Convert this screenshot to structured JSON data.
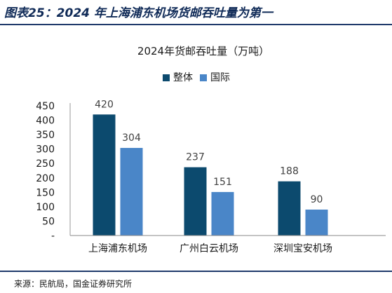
{
  "figure": {
    "title": "图表25：2024 年上海浦东机场货邮吞吐量为第一",
    "source": "来源：民航局，国金证券研究所"
  },
  "colors": {
    "series_total": "#0c4a6e",
    "series_intl": "#4a86c8",
    "rule": "#1f3a6b",
    "figure_title": "#0f2a57"
  },
  "chart_data": {
    "type": "bar",
    "title": "2024年货邮吞吐量（万吨）",
    "categories": [
      "上海浦东机场",
      "广州白云机场",
      "深圳宝安机场"
    ],
    "series": [
      {
        "name": "整体",
        "values": [
          420,
          237,
          188
        ]
      },
      {
        "name": "国际",
        "values": [
          304,
          151,
          90
        ]
      }
    ],
    "yticks": [
      "-",
      "50",
      "100",
      "150",
      "200",
      "250",
      "300",
      "350",
      "400",
      "450"
    ],
    "ylim": [
      0,
      450
    ],
    "grid": false,
    "legend": "top-center",
    "data_labels": true
  }
}
